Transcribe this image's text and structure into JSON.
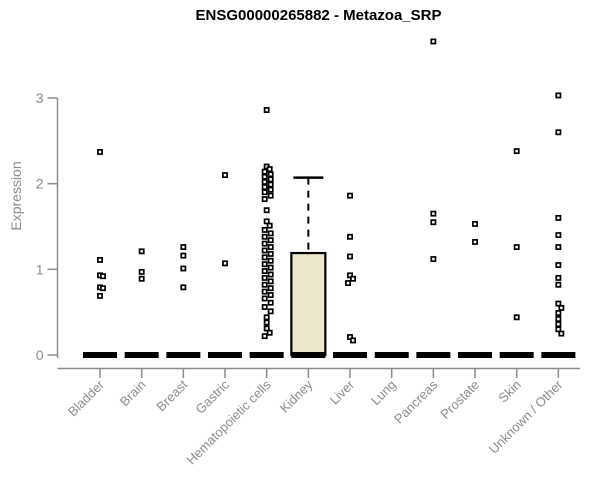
{
  "chart_data": {
    "type": "boxplot",
    "title": "ENSG00000265882 - Metazoa_SRP",
    "ylabel": "Expression",
    "xlabel": "",
    "ylim": [
      0,
      3
    ],
    "yticks": [
      0,
      1,
      2,
      3
    ],
    "grid": false,
    "legend": "none",
    "categories": [
      "Bladder",
      "Brain",
      "Breast",
      "Gastric",
      "Hematopoietic cells",
      "Kidney",
      "Liver",
      "Lung",
      "Pancreas",
      "Prostate",
      "Skin",
      "Unknown / Other"
    ],
    "boxes": [
      {
        "median": 0,
        "q1": 0,
        "q3": 0,
        "whisker_low": 0,
        "whisker_high": 0
      },
      {
        "median": 0,
        "q1": 0,
        "q3": 0,
        "whisker_low": 0,
        "whisker_high": 0
      },
      {
        "median": 0,
        "q1": 0,
        "q3": 0,
        "whisker_low": 0,
        "whisker_high": 0
      },
      {
        "median": 0,
        "q1": 0,
        "q3": 0,
        "whisker_low": 0,
        "whisker_high": 0
      },
      {
        "median": 0,
        "q1": 0,
        "q3": 0,
        "whisker_low": 0,
        "whisker_high": 0
      },
      {
        "median": 0,
        "q1": 0,
        "q3": 1.19,
        "whisker_low": 0,
        "whisker_high": 2.07
      },
      {
        "median": 0,
        "q1": 0,
        "q3": 0,
        "whisker_low": 0,
        "whisker_high": 0
      },
      {
        "median": 0,
        "q1": 0,
        "q3": 0,
        "whisker_low": 0,
        "whisker_high": 0
      },
      {
        "median": 0,
        "q1": 0,
        "q3": 0,
        "whisker_low": 0,
        "whisker_high": 0
      },
      {
        "median": 0,
        "q1": 0,
        "q3": 0,
        "whisker_low": 0,
        "whisker_high": 0
      },
      {
        "median": 0,
        "q1": 0,
        "q3": 0,
        "whisker_low": 0,
        "whisker_high": 0
      },
      {
        "median": 0,
        "q1": 0,
        "q3": 0,
        "whisker_low": 0,
        "whisker_high": 0
      }
    ],
    "points": [
      [
        2.37,
        1.11,
        0.93,
        0.92,
        0.79,
        0.78,
        0.69
      ],
      [
        1.21,
        0.97,
        0.89
      ],
      [
        1.26,
        1.16,
        1.01,
        0.79
      ],
      [
        2.1,
        1.07
      ],
      [
        2.86,
        2.2,
        2.17,
        2.14,
        2.11,
        2.08,
        2.05,
        2.02,
        1.99,
        1.96,
        1.93,
        1.9,
        1.86,
        1.82,
        1.69,
        1.56,
        1.51,
        1.46,
        1.42,
        1.38,
        1.34,
        1.3,
        1.26,
        1.22,
        1.18,
        1.14,
        1.1,
        1.06,
        1.02,
        0.98,
        0.94,
        0.9,
        0.86,
        0.82,
        0.78,
        0.74,
        0.7,
        0.66,
        0.61,
        0.56,
        0.51,
        0.44,
        0.38,
        0.31,
        0.26,
        0.22
      ],
      [],
      [
        1.86,
        1.38,
        1.15,
        0.93,
        0.89,
        0.84,
        0.21,
        0.17
      ],
      [],
      [
        3.66,
        1.65,
        1.55,
        1.12
      ],
      [
        1.53,
        1.32
      ],
      [
        2.38,
        1.26,
        0.44
      ],
      [
        3.03,
        2.6,
        1.6,
        1.4,
        1.26,
        1.05,
        0.9,
        0.82,
        0.6,
        0.55,
        0.49,
        0.42,
        0.36,
        0.3,
        0.25
      ]
    ],
    "colors": {
      "box_fill": "#ede7cd",
      "box_border": "#000000",
      "median": "#000000",
      "point_stroke": "#000000",
      "point_fill": "#ffffff",
      "axis": "#8c8c8c",
      "tick_label": "#8c8c8c",
      "title": "#000000",
      "background": "#ffffff"
    }
  }
}
